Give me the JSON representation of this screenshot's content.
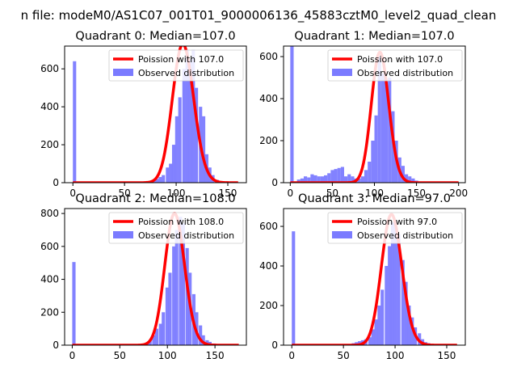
{
  "suptitle": "n file: modeM0/AS1C07_001T01_9000006136_45883cztM0_level2_quad_clean",
  "colors": {
    "observed": "#7b7bff",
    "poisson": "#ff0000",
    "axis": "#000000"
  },
  "chart_data": [
    {
      "type": "bar",
      "title": "Quadrant 0: Median=107.0",
      "xlim": [
        -8,
        168
      ],
      "ylim": [
        0,
        720
      ],
      "xticks": [
        0,
        50,
        100,
        150
      ],
      "yticks": [
        0,
        200,
        400,
        600
      ],
      "legend": {
        "placement": "top-right",
        "entries": [
          "Poission with 107.0",
          "Observed distribution"
        ]
      },
      "poisson_mean": 107,
      "poisson_scale": 730,
      "hist": {
        "bin_width": 3.2,
        "bins": [
          [
            0,
            640
          ],
          [
            64,
            2
          ],
          [
            67,
            3
          ],
          [
            70,
            5
          ],
          [
            74,
            6
          ],
          [
            77,
            8
          ],
          [
            80,
            20
          ],
          [
            83,
            30
          ],
          [
            86,
            40
          ],
          [
            90,
            80
          ],
          [
            93,
            100
          ],
          [
            96,
            200
          ],
          [
            99,
            350
          ],
          [
            102,
            450
          ],
          [
            106,
            600
          ],
          [
            109,
            700
          ],
          [
            112,
            650
          ],
          [
            115,
            700
          ],
          [
            118,
            500
          ],
          [
            122,
            400
          ],
          [
            125,
            350
          ],
          [
            128,
            150
          ],
          [
            131,
            80
          ],
          [
            134,
            40
          ],
          [
            138,
            15
          ],
          [
            141,
            8
          ],
          [
            144,
            4
          ],
          [
            147,
            2
          ],
          [
            150,
            1
          ]
        ]
      }
    },
    {
      "type": "bar",
      "title": "Quadrant 1: Median=107.0",
      "xlim": [
        -8,
        208
      ],
      "ylim": [
        0,
        650
      ],
      "xticks": [
        0,
        50,
        100,
        150,
        200
      ],
      "yticks": [
        0,
        200,
        400,
        600
      ],
      "legend": {
        "placement": "top-right",
        "entries": [
          "Poission with 107.0",
          "Observed distribution"
        ]
      },
      "poisson_mean": 107,
      "poisson_scale": 620,
      "hist": {
        "bin_width": 4,
        "bins": [
          [
            0,
            650
          ],
          [
            8,
            15
          ],
          [
            12,
            20
          ],
          [
            16,
            30
          ],
          [
            20,
            25
          ],
          [
            24,
            40
          ],
          [
            28,
            35
          ],
          [
            32,
            30
          ],
          [
            36,
            30
          ],
          [
            40,
            35
          ],
          [
            44,
            45
          ],
          [
            48,
            60
          ],
          [
            52,
            65
          ],
          [
            56,
            70
          ],
          [
            60,
            75
          ],
          [
            64,
            30
          ],
          [
            68,
            40
          ],
          [
            72,
            30
          ],
          [
            76,
            20
          ],
          [
            80,
            20
          ],
          [
            84,
            30
          ],
          [
            88,
            60
          ],
          [
            92,
            100
          ],
          [
            96,
            200
          ],
          [
            100,
            320
          ],
          [
            104,
            600
          ],
          [
            108,
            520
          ],
          [
            112,
            480
          ],
          [
            116,
            500
          ],
          [
            120,
            340
          ],
          [
            124,
            200
          ],
          [
            128,
            120
          ],
          [
            132,
            80
          ],
          [
            136,
            40
          ],
          [
            140,
            30
          ],
          [
            144,
            20
          ],
          [
            148,
            10
          ],
          [
            152,
            5
          ],
          [
            156,
            3
          ]
        ]
      }
    },
    {
      "type": "bar",
      "title": "Quadrant 2: Median=108.0",
      "xlim": [
        -8,
        183
      ],
      "ylim": [
        0,
        830
      ],
      "xticks": [
        0,
        50,
        100,
        150
      ],
      "yticks": [
        0,
        200,
        400,
        600,
        800
      ],
      "legend": {
        "placement": "top-right",
        "entries": [
          "Poission with 108.0",
          "Observed distribution"
        ]
      },
      "poisson_mean": 108,
      "poisson_scale": 800,
      "hist": {
        "bin_width": 3.5,
        "bins": [
          [
            0,
            505
          ],
          [
            70,
            3
          ],
          [
            73,
            6
          ],
          [
            77,
            15
          ],
          [
            80,
            30
          ],
          [
            84,
            60
          ],
          [
            87,
            100
          ],
          [
            91,
            130
          ],
          [
            94,
            200
          ],
          [
            98,
            350
          ],
          [
            101,
            440
          ],
          [
            105,
            600
          ],
          [
            108,
            700
          ],
          [
            112,
            780
          ],
          [
            115,
            740
          ],
          [
            119,
            590
          ],
          [
            122,
            440
          ],
          [
            126,
            310
          ],
          [
            129,
            200
          ],
          [
            133,
            120
          ],
          [
            136,
            60
          ],
          [
            140,
            30
          ],
          [
            143,
            20
          ],
          [
            147,
            10
          ],
          [
            150,
            5
          ],
          [
            154,
            3
          ]
        ]
      }
    },
    {
      "type": "bar",
      "title": "Quadrant 3: Median=97.0",
      "xlim": [
        -8,
        168
      ],
      "ylim": [
        0,
        690
      ],
      "xticks": [
        0,
        50,
        100,
        150
      ],
      "yticks": [
        0,
        200,
        400,
        600
      ],
      "legend": {
        "placement": "top-right",
        "entries": [
          "Poission with 97.0",
          "Observed distribution"
        ]
      },
      "poisson_mean": 97,
      "poisson_scale": 660,
      "hist": {
        "bin_width": 3.2,
        "bins": [
          [
            0,
            575
          ],
          [
            54,
            5
          ],
          [
            58,
            10
          ],
          [
            61,
            15
          ],
          [
            64,
            20
          ],
          [
            67,
            25
          ],
          [
            70,
            30
          ],
          [
            74,
            40
          ],
          [
            77,
            80
          ],
          [
            80,
            130
          ],
          [
            83,
            200
          ],
          [
            86,
            280
          ],
          [
            90,
            400
          ],
          [
            93,
            500
          ],
          [
            96,
            620
          ],
          [
            99,
            600
          ],
          [
            102,
            560
          ],
          [
            106,
            430
          ],
          [
            109,
            320
          ],
          [
            112,
            200
          ],
          [
            115,
            140
          ],
          [
            118,
            90
          ],
          [
            122,
            60
          ],
          [
            125,
            30
          ],
          [
            128,
            15
          ],
          [
            131,
            10
          ],
          [
            134,
            5
          ]
        ]
      }
    }
  ]
}
